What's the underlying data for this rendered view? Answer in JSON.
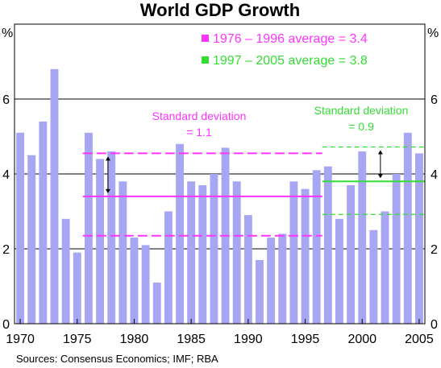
{
  "chart_data": {
    "type": "bar",
    "title": "World GDP Growth",
    "unit_left": "%",
    "unit_right": "%",
    "x": [
      1970,
      1971,
      1972,
      1973,
      1974,
      1975,
      1976,
      1977,
      1978,
      1979,
      1980,
      1981,
      1982,
      1983,
      1984,
      1985,
      1986,
      1987,
      1988,
      1989,
      1990,
      1991,
      1992,
      1993,
      1994,
      1995,
      1996,
      1997,
      1998,
      1999,
      2000,
      2001,
      2002,
      2003,
      2004,
      2005
    ],
    "values": [
      5.1,
      4.5,
      5.4,
      6.8,
      2.8,
      1.9,
      5.1,
      4.4,
      4.6,
      3.8,
      2.3,
      2.1,
      1.1,
      3.0,
      4.8,
      3.8,
      3.7,
      4.0,
      4.7,
      3.8,
      2.9,
      1.7,
      2.3,
      2.4,
      3.8,
      3.6,
      4.1,
      4.2,
      2.8,
      3.7,
      4.6,
      2.5,
      3.0,
      4.0,
      5.1,
      4.55
    ],
    "ylim": [
      0,
      8
    ],
    "yticks": [
      "0",
      "2",
      "4",
      "6"
    ],
    "ytick_values": [
      0,
      2,
      4,
      6
    ],
    "xticks": [
      "1970",
      "1975",
      "1980",
      "1985",
      "1990",
      "1995",
      "2000",
      "2005"
    ],
    "xtick_values": [
      1970,
      1975,
      1980,
      1985,
      1990,
      1995,
      2000,
      2005
    ],
    "bar_color": "#a6a6f2",
    "grid": true,
    "periods": [
      {
        "legend": "1976 – 1996 average = 3.4",
        "color": "#ff33ff",
        "start": 1976,
        "end": 1996,
        "average": 3.4,
        "upper": 4.55,
        "lower": 2.35,
        "annotation_line1": "Standard deviation",
        "annotation_line2": "= 1.1"
      },
      {
        "legend": "1997 – 2005 average = 3.8",
        "color": "#33dd33",
        "start": 1997,
        "end": 2005,
        "average": 3.8,
        "upper": 4.72,
        "lower": 2.92,
        "annotation_line1": "Standard deviation",
        "annotation_line2": "= 0.9"
      }
    ],
    "source": "Sources: Consensus Economics; IMF; RBA"
  }
}
